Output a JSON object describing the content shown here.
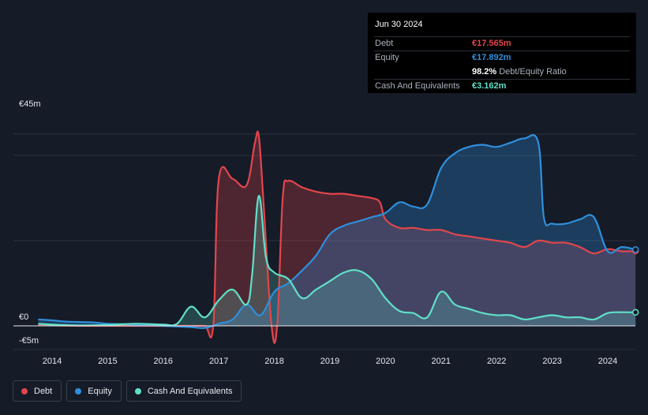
{
  "tooltip": {
    "date": "Jun 30 2024",
    "rows": [
      {
        "label": "Debt",
        "value": "€17.565m",
        "color": "#e2464c"
      },
      {
        "label": "Equity",
        "value": "€17.892m",
        "color": "#2f8fdc"
      },
      {
        "label": "",
        "value": "98.2%",
        "suffix": "Debt/Equity Ratio",
        "color": "#ffffff"
      },
      {
        "label": "Cash And Equivalents",
        "value": "€3.162m",
        "color": "#5fe0c8"
      }
    ]
  },
  "legend": [
    {
      "label": "Debt",
      "color": "#e2464c"
    },
    {
      "label": "Equity",
      "color": "#2f8fdc"
    },
    {
      "label": "Cash And Equivalents",
      "color": "#5fe0c8"
    }
  ],
  "chart_data": {
    "type": "area",
    "title": "",
    "xlabel": "",
    "ylabel": "",
    "ylim": [
      -5,
      45
    ],
    "y_tick_labels": [
      "€45m",
      "€0",
      "-€5m"
    ],
    "y_ticks": [
      45,
      0,
      -5
    ],
    "x_tick_labels": [
      "2014",
      "2015",
      "2016",
      "2017",
      "2018",
      "2019",
      "2020",
      "2021",
      "2022",
      "2023",
      "2024"
    ],
    "x_ticks": [
      2014,
      2015,
      2016,
      2017,
      2018,
      2019,
      2020,
      2021,
      2022,
      2023,
      2024
    ],
    "xlim": [
      2013.75,
      2024.5
    ],
    "grid": true,
    "legend_position": "bottom-left",
    "series": [
      {
        "name": "Debt",
        "color": "#e2464c",
        "points": [
          [
            2013.75,
            0.2
          ],
          [
            2014.5,
            0
          ],
          [
            2015.5,
            0
          ],
          [
            2016.5,
            0
          ],
          [
            2016.75,
            0
          ],
          [
            2016.9,
            0
          ],
          [
            2017.0,
            34.5
          ],
          [
            2017.25,
            34.5
          ],
          [
            2017.5,
            33.0
          ],
          [
            2017.65,
            43.0
          ],
          [
            2017.72,
            44.5
          ],
          [
            2017.8,
            30.0
          ],
          [
            2017.95,
            0
          ],
          [
            2018.05,
            0
          ],
          [
            2018.15,
            30.0
          ],
          [
            2018.25,
            34.0
          ],
          [
            2018.5,
            32.5
          ],
          [
            2018.75,
            31.5
          ],
          [
            2019.0,
            31.0
          ],
          [
            2019.25,
            31.0
          ],
          [
            2019.5,
            30.5
          ],
          [
            2019.75,
            30.0
          ],
          [
            2019.9,
            29.0
          ],
          [
            2020.0,
            25.0
          ],
          [
            2020.25,
            23.0
          ],
          [
            2020.5,
            23.0
          ],
          [
            2020.75,
            22.5
          ],
          [
            2021.0,
            22.5
          ],
          [
            2021.25,
            21.5
          ],
          [
            2021.5,
            21.0
          ],
          [
            2021.75,
            20.5
          ],
          [
            2022.0,
            20.0
          ],
          [
            2022.25,
            19.5
          ],
          [
            2022.5,
            18.5
          ],
          [
            2022.75,
            20.0
          ],
          [
            2023.0,
            19.5
          ],
          [
            2023.25,
            19.5
          ],
          [
            2023.5,
            18.5
          ],
          [
            2023.75,
            17.0
          ],
          [
            2024.0,
            18.0
          ],
          [
            2024.25,
            17.5
          ],
          [
            2024.5,
            17.565
          ]
        ]
      },
      {
        "name": "Equity",
        "color": "#2f8fdc",
        "points": [
          [
            2013.75,
            1.5
          ],
          [
            2014.0,
            1.3
          ],
          [
            2014.25,
            1.0
          ],
          [
            2014.75,
            0.8
          ],
          [
            2015.0,
            0.5
          ],
          [
            2015.5,
            0.3
          ],
          [
            2016.0,
            0
          ],
          [
            2016.5,
            -0.3
          ],
          [
            2016.75,
            -0.5
          ],
          [
            2017.0,
            0.5
          ],
          [
            2017.25,
            1.5
          ],
          [
            2017.5,
            5.0
          ],
          [
            2017.75,
            2.5
          ],
          [
            2018.0,
            8.0
          ],
          [
            2018.25,
            10.0
          ],
          [
            2018.5,
            13.0
          ],
          [
            2018.75,
            16.5
          ],
          [
            2019.0,
            21.5
          ],
          [
            2019.25,
            23.5
          ],
          [
            2019.5,
            24.5
          ],
          [
            2019.75,
            25.5
          ],
          [
            2020.0,
            26.5
          ],
          [
            2020.25,
            29.0
          ],
          [
            2020.5,
            28.0
          ],
          [
            2020.75,
            28.5
          ],
          [
            2021.0,
            37.0
          ],
          [
            2021.25,
            40.5
          ],
          [
            2021.5,
            42.0
          ],
          [
            2021.75,
            42.5
          ],
          [
            2022.0,
            42.0
          ],
          [
            2022.25,
            43.0
          ],
          [
            2022.5,
            44.0
          ],
          [
            2022.75,
            43.0
          ],
          [
            2022.85,
            25.5
          ],
          [
            2023.0,
            24.0
          ],
          [
            2023.25,
            24.0
          ],
          [
            2023.5,
            25.0
          ],
          [
            2023.75,
            25.5
          ],
          [
            2024.0,
            17.5
          ],
          [
            2024.25,
            18.5
          ],
          [
            2024.5,
            17.892
          ]
        ]
      },
      {
        "name": "Cash And Equivalents",
        "color": "#5fe0c8",
        "points": [
          [
            2013.75,
            0.5
          ],
          [
            2014.0,
            0.3
          ],
          [
            2014.5,
            0.1
          ],
          [
            2015.0,
            0.2
          ],
          [
            2015.5,
            0.5
          ],
          [
            2016.0,
            0.3
          ],
          [
            2016.25,
            0.5
          ],
          [
            2016.5,
            4.5
          ],
          [
            2016.75,
            2.0
          ],
          [
            2017.0,
            6.0
          ],
          [
            2017.25,
            8.5
          ],
          [
            2017.5,
            5.0
          ],
          [
            2017.6,
            12.0
          ],
          [
            2017.72,
            30.5
          ],
          [
            2017.85,
            16.0
          ],
          [
            2018.0,
            12.5
          ],
          [
            2018.25,
            11.0
          ],
          [
            2018.5,
            6.5
          ],
          [
            2018.75,
            8.5
          ],
          [
            2019.0,
            10.5
          ],
          [
            2019.25,
            12.5
          ],
          [
            2019.5,
            13.0
          ],
          [
            2019.75,
            11.0
          ],
          [
            2020.0,
            6.5
          ],
          [
            2020.25,
            3.5
          ],
          [
            2020.5,
            3.0
          ],
          [
            2020.75,
            2.0
          ],
          [
            2021.0,
            8.0
          ],
          [
            2021.25,
            5.0
          ],
          [
            2021.5,
            4.0
          ],
          [
            2021.75,
            3.0
          ],
          [
            2022.0,
            2.5
          ],
          [
            2022.25,
            2.5
          ],
          [
            2022.5,
            1.5
          ],
          [
            2022.75,
            2.0
          ],
          [
            2023.0,
            2.5
          ],
          [
            2023.25,
            2.0
          ],
          [
            2023.5,
            2.0
          ],
          [
            2023.75,
            1.5
          ],
          [
            2024.0,
            3.0
          ],
          [
            2024.25,
            3.2
          ],
          [
            2024.5,
            3.162
          ]
        ]
      }
    ]
  }
}
